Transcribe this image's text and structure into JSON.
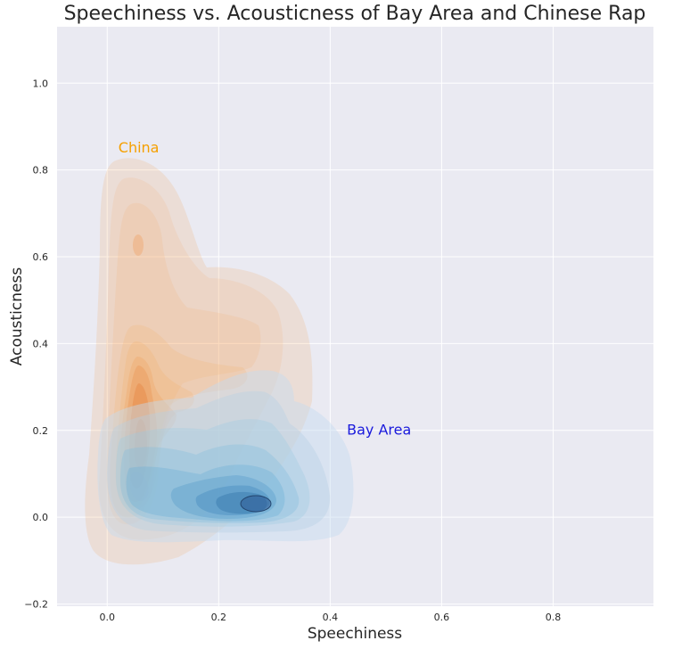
{
  "chart_data": {
    "type": "kde_contour",
    "title": "Speechiness vs. Acousticness of Bay Area and Chinese Rap",
    "xlabel": "Speechiness",
    "ylabel": "Acousticness",
    "xlim": [
      -0.09,
      0.98
    ],
    "ylim": [
      -0.205,
      1.13
    ],
    "x_ticks": [
      0.0,
      0.2,
      0.4,
      0.6,
      0.8
    ],
    "x_tick_labels": [
      "0.0",
      "0.2",
      "0.4",
      "0.6",
      "0.8"
    ],
    "y_ticks": [
      -0.2,
      0.0,
      0.2,
      0.4,
      0.6,
      0.8,
      1.0
    ],
    "y_tick_labels": [
      "−0.2",
      "0.0",
      "0.2",
      "0.4",
      "0.6",
      "0.8",
      "1.0"
    ],
    "grid": true,
    "background_color": "#eaeaf2",
    "annotations": [
      {
        "text": "China",
        "x": 0.02,
        "y": 0.84,
        "color": "#f5a000"
      },
      {
        "text": "Bay Area",
        "x": 0.43,
        "y": 0.19,
        "color": "#1a1adc"
      }
    ],
    "series": [
      {
        "colormap": "Oranges",
        "peak_color": "#d9620c",
        "level_count": 10,
        "density_peaks": [
          {
            "x": 0.07,
            "y": 0.63
          },
          {
            "x": 0.065,
            "y": 0.17
          }
        ]
      },
      {
        "colormap": "Blues",
        "peak_color": "#2a5490",
        "level_count": 10,
        "density_peaks": [
          {
            "x": 0.275,
            "y": 0.03
          },
          {
            "x": 0.06,
            "y": 0.07
          }
        ]
      }
    ]
  }
}
